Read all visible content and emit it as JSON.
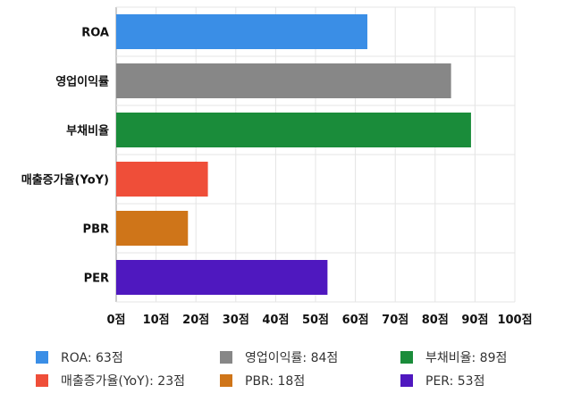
{
  "chart_data": {
    "type": "bar",
    "orientation": "horizontal",
    "categories": [
      "ROA",
      "영업이익률",
      "부채비율",
      "매출증가율(YoY)",
      "PBR",
      "PER"
    ],
    "values": [
      63,
      84,
      89,
      23,
      18,
      53
    ],
    "colors": [
      "#3a8ee6",
      "#878787",
      "#1a8c3a",
      "#ef4e39",
      "#cf7519",
      "#4f18bf"
    ],
    "xlim": [
      0,
      100
    ],
    "x_ticks": [
      "0점",
      "10점",
      "20점",
      "30점",
      "40점",
      "50점",
      "60점",
      "70점",
      "80점",
      "90점",
      "100점"
    ],
    "grid": true,
    "legend": {
      "position": "bottom",
      "entries": [
        "ROA: 63점",
        "영업이익률: 84점",
        "부채비율: 89점",
        "매출증가율(YoY): 23점",
        "PBR: 18점",
        "PER: 53점"
      ]
    }
  }
}
